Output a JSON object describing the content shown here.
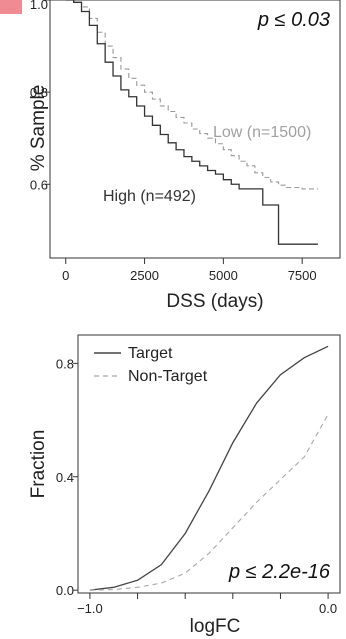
{
  "chart_data": [
    {
      "type": "line",
      "xlabel": "DSS (days)",
      "ylabel": "% Sample",
      "xlim": [
        -500,
        8700
      ],
      "ylim": [
        0.44,
        1.0
      ],
      "xticks": [
        0,
        2500,
        5000,
        7500
      ],
      "xtick_labels": [
        "0",
        "2500",
        "5000",
        "7500"
      ],
      "yticks": [
        0.6,
        0.8,
        1.0
      ],
      "ytick_labels": [
        "0.6",
        "0.8",
        "1.0"
      ],
      "pvalue_label": "p ≤ 0.03",
      "annotations": [
        {
          "text": "Low (n=1500)",
          "color": "#a0a0a0"
        },
        {
          "text": "High (n=492)",
          "color": "#333333"
        }
      ],
      "series": [
        {
          "name": "Low (n=1500)",
          "color": "#9a9a9a",
          "dash": true,
          "x": [
            0,
            250,
            500,
            750,
            1000,
            1250,
            1500,
            1750,
            2000,
            2250,
            2500,
            2750,
            3000,
            3250,
            3500,
            3750,
            4000,
            4250,
            4500,
            4750,
            5000,
            5250,
            5500,
            5750,
            6000,
            6250,
            6500,
            6750,
            7000,
            7500,
            8000
          ],
          "y": [
            1.0,
            0.995,
            0.985,
            0.96,
            0.93,
            0.9,
            0.875,
            0.85,
            0.83,
            0.815,
            0.8,
            0.785,
            0.77,
            0.758,
            0.745,
            0.733,
            0.72,
            0.71,
            0.7,
            0.688,
            0.675,
            0.662,
            0.65,
            0.64,
            0.625,
            0.615,
            0.605,
            0.598,
            0.593,
            0.59,
            0.59
          ]
        },
        {
          "name": "High (n=492)",
          "color": "#333333",
          "dash": false,
          "x": [
            0,
            250,
            500,
            750,
            1000,
            1250,
            1500,
            1750,
            2000,
            2250,
            2500,
            2750,
            3000,
            3250,
            3500,
            3750,
            4000,
            4250,
            4500,
            4750,
            5000,
            5250,
            5500,
            5750,
            6000,
            6250,
            6500,
            6750,
            7000,
            8000
          ],
          "y": [
            1.0,
            0.995,
            0.975,
            0.945,
            0.905,
            0.865,
            0.835,
            0.805,
            0.79,
            0.77,
            0.748,
            0.728,
            0.708,
            0.69,
            0.675,
            0.66,
            0.65,
            0.64,
            0.63,
            0.622,
            0.61,
            0.6,
            0.59,
            0.59,
            0.59,
            0.555,
            0.555,
            0.47,
            0.47,
            0.47
          ]
        }
      ]
    },
    {
      "type": "line",
      "xlabel": "logFC",
      "ylabel": "Fraction",
      "xlim": [
        -1.05,
        0.05
      ],
      "ylim": [
        -0.01,
        0.9
      ],
      "xticks": [
        -1.0,
        0.0
      ],
      "xtick_labels": [
        "−1.0",
        "0.0"
      ],
      "yticks": [
        0.0,
        0.4,
        0.8
      ],
      "ytick_labels": [
        "0.0",
        "0.4",
        "0.8"
      ],
      "pvalue_label": "p ≤ 2.2e-16",
      "legend": {
        "placement": "top-left",
        "entries": [
          {
            "label": "Target",
            "color": "#444444",
            "dash": false
          },
          {
            "label": "Non-Target",
            "color": "#a8a8a8",
            "dash": true
          }
        ]
      },
      "series": [
        {
          "name": "Target",
          "color": "#444444",
          "dash": false,
          "x": [
            -1.0,
            -0.9,
            -0.8,
            -0.7,
            -0.6,
            -0.5,
            -0.4,
            -0.3,
            -0.2,
            -0.1,
            0.0
          ],
          "y": [
            0.0,
            0.01,
            0.035,
            0.09,
            0.2,
            0.35,
            0.52,
            0.66,
            0.76,
            0.82,
            0.86
          ]
        },
        {
          "name": "Non-Target",
          "color": "#a8a8a8",
          "dash": true,
          "x": [
            -1.0,
            -0.9,
            -0.8,
            -0.7,
            -0.6,
            -0.5,
            -0.4,
            -0.3,
            -0.2,
            -0.1,
            0.0
          ],
          "y": [
            0.0,
            0.002,
            0.01,
            0.025,
            0.06,
            0.13,
            0.22,
            0.31,
            0.39,
            0.47,
            0.62
          ]
        }
      ]
    }
  ]
}
